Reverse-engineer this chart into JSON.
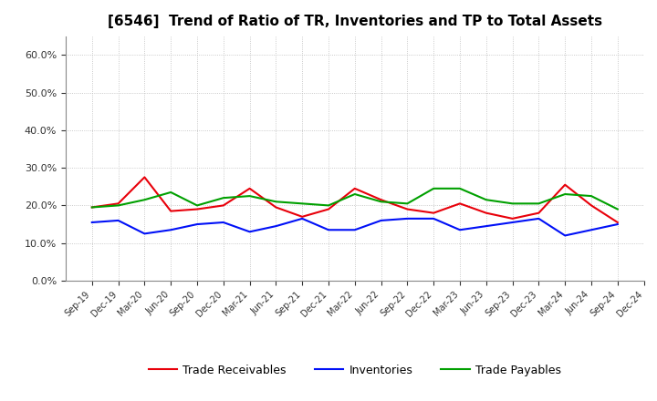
{
  "title": "[6546]  Trend of Ratio of TR, Inventories and TP to Total Assets",
  "labels": [
    "Sep-19",
    "Dec-19",
    "Mar-20",
    "Jun-20",
    "Sep-20",
    "Dec-20",
    "Mar-21",
    "Jun-21",
    "Sep-21",
    "Dec-21",
    "Mar-22",
    "Jun-22",
    "Sep-22",
    "Dec-22",
    "Mar-23",
    "Jun-23",
    "Sep-23",
    "Dec-23",
    "Mar-24",
    "Jun-24",
    "Sep-24",
    "Dec-24"
  ],
  "trade_receivables": [
    19.5,
    20.5,
    27.5,
    18.5,
    19.0,
    20.0,
    24.5,
    19.5,
    17.0,
    19.0,
    24.5,
    21.5,
    19.0,
    18.0,
    20.5,
    18.0,
    16.5,
    18.0,
    25.5,
    20.0,
    15.5,
    null
  ],
  "inventories": [
    15.5,
    16.0,
    12.5,
    13.5,
    15.0,
    15.5,
    13.0,
    14.5,
    16.5,
    13.5,
    13.5,
    16.0,
    16.5,
    16.5,
    13.5,
    14.5,
    15.5,
    16.5,
    12.0,
    13.5,
    15.0,
    null
  ],
  "trade_payables": [
    19.5,
    20.0,
    21.5,
    23.5,
    20.0,
    22.0,
    22.5,
    21.0,
    20.5,
    20.0,
    23.0,
    21.0,
    20.5,
    24.5,
    24.5,
    21.5,
    20.5,
    20.5,
    23.0,
    22.5,
    19.0,
    null
  ],
  "tr_color": "#e8000a",
  "inv_color": "#0010f7",
  "tp_color": "#00a000",
  "ylim": [
    0.0,
    0.65
  ],
  "yticks": [
    0.0,
    0.1,
    0.2,
    0.3,
    0.4,
    0.5,
    0.6
  ],
  "legend_tr": "Trade Receivables",
  "legend_inv": "Inventories",
  "legend_tp": "Trade Payables",
  "bg_color": "#ffffff",
  "plot_bg_color": "#ffffff",
  "title_fontsize": 11,
  "linewidth": 1.5,
  "grid_color": "#bbbbbb",
  "grid_style": ":",
  "grid_linewidth": 0.6
}
